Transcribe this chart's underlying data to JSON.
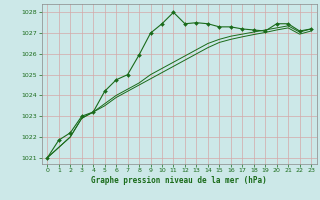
{
  "title": "Graphe pression niveau de la mer (hPa)",
  "bg_color": "#cce8e8",
  "grid_color": "#d4a8a8",
  "line_color": "#1a6b1a",
  "xlim": [
    -0.5,
    23.5
  ],
  "ylim": [
    1020.7,
    1028.4
  ],
  "yticks": [
    1021,
    1022,
    1023,
    1024,
    1025,
    1026,
    1027,
    1028
  ],
  "xticks": [
    0,
    1,
    2,
    3,
    4,
    5,
    6,
    7,
    8,
    9,
    10,
    11,
    12,
    13,
    14,
    15,
    16,
    17,
    18,
    19,
    20,
    21,
    22,
    23
  ],
  "series1_x": [
    0,
    1,
    2,
    3,
    4,
    5,
    6,
    7,
    8,
    9,
    10,
    11,
    12,
    13,
    14,
    15,
    16,
    17,
    18,
    19,
    20,
    21,
    22,
    23
  ],
  "series1_y": [
    1021.0,
    1021.85,
    1022.2,
    1023.0,
    1023.2,
    1024.2,
    1024.75,
    1025.0,
    1025.95,
    1027.0,
    1027.45,
    1028.0,
    1027.45,
    1027.5,
    1027.45,
    1027.3,
    1027.3,
    1027.2,
    1027.15,
    1027.1,
    1027.45,
    1027.45,
    1027.1,
    1027.2
  ],
  "series2_x": [
    0,
    1,
    2,
    3,
    4,
    5,
    6,
    7,
    8,
    9,
    10,
    11,
    12,
    13,
    14,
    15,
    16,
    17,
    18,
    19,
    20,
    21,
    22,
    23
  ],
  "series2_y": [
    1021.0,
    1021.5,
    1022.0,
    1022.9,
    1023.2,
    1023.6,
    1024.0,
    1024.3,
    1024.6,
    1025.0,
    1025.3,
    1025.6,
    1025.9,
    1026.2,
    1026.5,
    1026.7,
    1026.85,
    1026.95,
    1027.05,
    1027.15,
    1027.25,
    1027.35,
    1027.05,
    1027.2
  ],
  "series3_x": [
    0,
    1,
    2,
    3,
    4,
    5,
    6,
    7,
    8,
    9,
    10,
    11,
    12,
    13,
    14,
    15,
    16,
    17,
    18,
    19,
    20,
    21,
    22,
    23
  ],
  "series3_y": [
    1021.0,
    1021.5,
    1022.0,
    1022.9,
    1023.2,
    1023.5,
    1023.9,
    1024.2,
    1024.5,
    1024.8,
    1025.1,
    1025.4,
    1025.7,
    1026.0,
    1026.3,
    1026.55,
    1026.7,
    1026.82,
    1026.93,
    1027.03,
    1027.15,
    1027.25,
    1026.95,
    1027.1
  ]
}
